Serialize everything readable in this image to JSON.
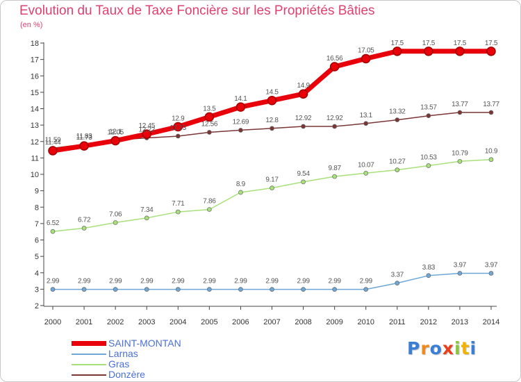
{
  "title": "Evolution du Taux de Taxe Foncière sur les Propriétés Bâties",
  "unit": "(en %)",
  "logo": {
    "text": "Proxiti",
    "colors": [
      "#3a7fd5",
      "#f08a1c",
      "#3a7fd5",
      "#e8401c",
      "#8cc63f",
      "#f0b400",
      "#3a7fd5"
    ]
  },
  "chart_data": {
    "type": "line",
    "x": [
      "2000",
      "2001",
      "2002",
      "2003",
      "2004",
      "2005",
      "2006",
      "2007",
      "2008",
      "2009",
      "2010",
      "2011",
      "2012",
      "2013",
      "2014"
    ],
    "ylim": [
      2,
      18
    ],
    "yticks": [
      2,
      3,
      4,
      5,
      6,
      7,
      8,
      9,
      10,
      11,
      12,
      13,
      14,
      15,
      16,
      17,
      18
    ],
    "grid": false,
    "legend": "bottom-left",
    "series": [
      {
        "name": "SAINT-MONTAN",
        "color": "#e8000b",
        "values": [
          11.44,
          11.73,
          12.05,
          12.45,
          12.9,
          13.5,
          14.1,
          14.5,
          14.9,
          16.56,
          17.05,
          17.5,
          17.5,
          17.5,
          17.5
        ],
        "labels": [
          "11.44",
          "11.73",
          "12.05",
          "12.45",
          "12.9",
          "13.5",
          "14.1",
          "14.5",
          "14.9",
          "16.56",
          "17.05",
          "17.5",
          "17.5",
          "17.5",
          "17.5"
        ]
      },
      {
        "name": "Larnas",
        "color": "#6ea6d6",
        "values": [
          2.99,
          2.99,
          2.99,
          2.99,
          2.99,
          2.99,
          2.99,
          2.99,
          2.99,
          2.99,
          2.99,
          3.37,
          3.83,
          3.97,
          3.97
        ],
        "labels": [
          "2.99",
          "2.99",
          "2.99",
          "2.99",
          "2.99",
          "2.99",
          "2.99",
          "2.99",
          "2.99",
          "2.99",
          "2.99",
          "3.37",
          "3.83",
          "3.97",
          "3.97"
        ]
      },
      {
        "name": "Gras",
        "color": "#a8e07a",
        "values": [
          6.52,
          6.72,
          7.06,
          7.34,
          7.71,
          7.86,
          8.9,
          9.17,
          9.54,
          9.87,
          10.07,
          10.27,
          10.53,
          10.79,
          10.9
        ],
        "labels": [
          "6.52",
          "6.72",
          "7.06",
          "7.34",
          "7.71",
          "7.86",
          "8.9",
          "9.17",
          "9.54",
          "9.87",
          "10.07",
          "10.27",
          "10.53",
          "10.79",
          "10.9"
        ]
      },
      {
        "name": "Donzère",
        "color": "#7a3535",
        "values": [
          11.59,
          11.83,
          12.1,
          12.22,
          12.33,
          12.56,
          12.69,
          12.8,
          12.92,
          12.92,
          13.1,
          13.32,
          13.57,
          13.77,
          13.77
        ],
        "labels": [
          "11.59",
          "11.83",
          "12.1",
          "12.22",
          "12.33",
          "12.56",
          "12.69",
          "12.8",
          "12.92",
          "12.92",
          "13.1",
          "13.32",
          "13.57",
          "13.77",
          "13.77"
        ]
      }
    ]
  }
}
